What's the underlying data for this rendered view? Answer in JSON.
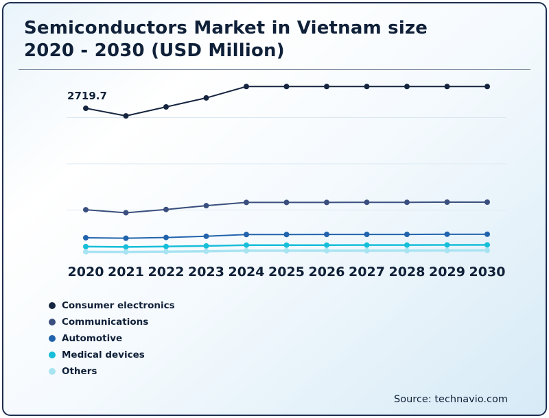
{
  "page": {
    "title_line1": "Semiconductors Market in Vietnam size",
    "title_line2": "2020 - 2030 (USD Million)",
    "source": "Source: technavio.com"
  },
  "chart_data": {
    "type": "line",
    "title": "Semiconductors Market in Vietnam size 2020 - 2030 (USD Million)",
    "xlabel": "",
    "ylabel": "USD Million",
    "categories": [
      "2020",
      "2021",
      "2022",
      "2023",
      "2024",
      "2025",
      "2026",
      "2027",
      "2028",
      "2029",
      "2030"
    ],
    "series": [
      {
        "name": "Consumer electronics",
        "color": "#16253f",
        "values": [
          2719.7,
          2580,
          2745,
          2910,
          3120,
          3120,
          3120,
          3120,
          3120,
          3120,
          3120
        ]
      },
      {
        "name": "Communications",
        "color": "#3a4f7e",
        "values": [
          855,
          800,
          860,
          930,
          990,
          990,
          990,
          992,
          992,
          995,
          995
        ]
      },
      {
        "name": "Automotive",
        "color": "#2163ac",
        "values": [
          340,
          332,
          345,
          368,
          400,
          400,
          402,
          402,
          402,
          405,
          405
        ]
      },
      {
        "name": "Medical devices",
        "color": "#16bed9",
        "values": [
          178,
          172,
          180,
          190,
          205,
          205,
          205,
          206,
          206,
          208,
          210
        ]
      },
      {
        "name": "Others",
        "color": "#a8e3f2",
        "values": [
          82,
          80,
          85,
          92,
          102,
          102,
          103,
          103,
          104,
          105,
          108
        ]
      }
    ],
    "data_label": {
      "series": "Consumer electronics",
      "x": "2020",
      "text": "2719.7"
    },
    "ylim": [
      0,
      3400
    ],
    "gridline_values": [
      850,
      1700,
      2550
    ],
    "line_widths": [
      2,
      2,
      2,
      2.5,
      3.5
    ],
    "grid": true,
    "legend_position": "bottom-left",
    "text_color": "#0f2038"
  }
}
